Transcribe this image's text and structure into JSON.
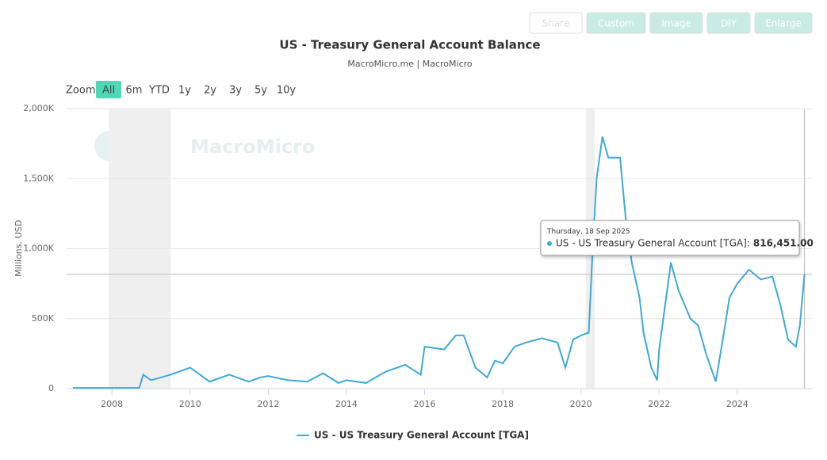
{
  "toolbar": [
    "Share",
    "Custom",
    "Image",
    "DIY",
    "Enlarge"
  ],
  "zoom": {
    "label": "Zoom",
    "buttons": [
      "All",
      "6m",
      "YTD",
      "1y",
      "2y",
      "3y",
      "5y",
      "10y"
    ],
    "active": 0
  },
  "watermark": "MacroMicro",
  "chart_data": {
    "type": "line",
    "title": "US - Treasury General Account Balance",
    "subtitle": "MacroMicro.me | MacroMicro",
    "y_label": "Millions, USD",
    "grid": true,
    "legend": "bottom",
    "xlim": [
      2006.84,
      2025.91
    ],
    "xticks": [
      2008,
      2010,
      2012,
      2014,
      2016,
      2018,
      2020,
      2022,
      2024
    ],
    "ylim": [
      0,
      2000000
    ],
    "yticks": [
      0,
      {
        "value": 500000,
        "label": "500K"
      },
      {
        "value": 1000000,
        "label": "1,000K"
      },
      {
        "value": 1500000,
        "label": "1,500K"
      },
      {
        "value": 2000000,
        "label": "2,000K"
      }
    ],
    "recessions": [
      [
        2007.92,
        2009.5
      ],
      [
        2020.13,
        2020.35
      ]
    ],
    "x": [
      2007.0,
      2008.0,
      2008.7,
      2008.8,
      2009.0,
      2009.5,
      2010.0,
      2010.5,
      2011.0,
      2011.5,
      2011.8,
      2012.0,
      2012.5,
      2013.0,
      2013.4,
      2013.8,
      2014.0,
      2014.5,
      2015.0,
      2015.5,
      2015.9,
      2016.0,
      2016.5,
      2016.8,
      2017.0,
      2017.3,
      2017.6,
      2017.8,
      2018.0,
      2018.3,
      2018.6,
      2019.0,
      2019.4,
      2019.6,
      2019.8,
      2020.0,
      2020.2,
      2020.3,
      2020.4,
      2020.55,
      2020.7,
      2021.0,
      2021.15,
      2021.3,
      2021.5,
      2021.6,
      2021.8,
      2021.95,
      2022.0,
      2022.3,
      2022.5,
      2022.8,
      2023.0,
      2023.2,
      2023.45,
      2023.6,
      2023.8,
      2024.0,
      2024.3,
      2024.6,
      2024.9,
      2025.1,
      2025.3,
      2025.5,
      2025.6,
      2025.72
    ],
    "series": [
      {
        "name": "US - US Treasury General Account [TGA]",
        "color": "#3fa9d5",
        "values": [
          5000,
          5000,
          5000,
          100000,
          60000,
          100000,
          150000,
          50000,
          100000,
          50000,
          80000,
          90000,
          60000,
          50000,
          110000,
          40000,
          60000,
          40000,
          120000,
          170000,
          100000,
          300000,
          280000,
          380000,
          380000,
          150000,
          80000,
          200000,
          180000,
          300000,
          330000,
          360000,
          330000,
          150000,
          350000,
          380000,
          400000,
          1000000,
          1500000,
          1800000,
          1650000,
          1650000,
          1200000,
          900000,
          650000,
          400000,
          150000,
          60000,
          280000,
          900000,
          700000,
          500000,
          450000,
          250000,
          50000,
          300000,
          650000,
          750000,
          850000,
          780000,
          800000,
          600000,
          350000,
          300000,
          450000,
          816451
        ]
      }
    ],
    "tooltip": {
      "date": "Thursday, 18 Sep 2025",
      "name": "US - US Treasury General Account [TGA]:",
      "value": 816451,
      "value_label": "816,451.00",
      "x": 2025.72
    }
  }
}
